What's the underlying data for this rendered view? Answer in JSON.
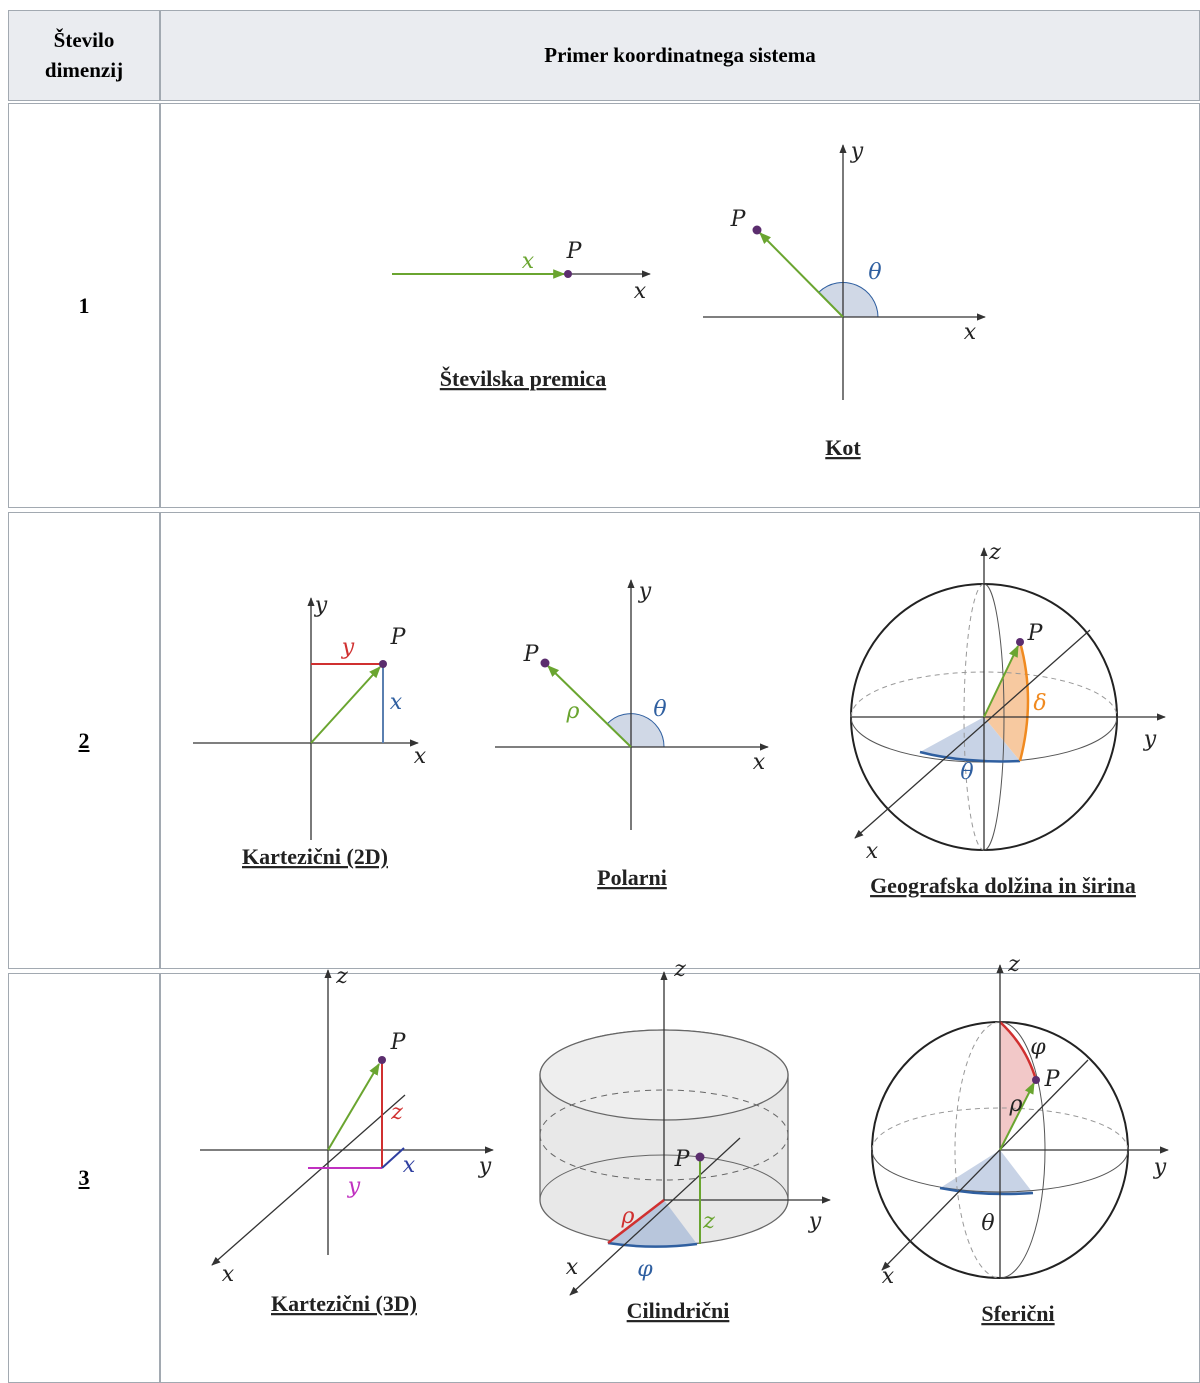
{
  "header": {
    "dimension": "Število dimenzij",
    "example": "Primer koordinatnega sistema"
  },
  "rows": [
    {
      "dimension": "1",
      "figures": [
        {
          "caption": "Številska premica",
          "labels": [
            "x",
            "P",
            "x"
          ]
        },
        {
          "caption": "Kot",
          "labels": [
            "y",
            "P",
            "θ",
            "x"
          ]
        }
      ]
    },
    {
      "dimension": "2",
      "figures": [
        {
          "caption": "Kartezični (2D)",
          "labels": [
            "y",
            "y",
            "P",
            "x",
            "x"
          ]
        },
        {
          "caption": "Polarni",
          "labels": [
            "y",
            "P",
            "ρ",
            "θ",
            "x"
          ]
        },
        {
          "caption": "Geografska dolžina in širina",
          "labels": [
            "z",
            "P",
            "δ",
            "y",
            "θ",
            "x"
          ]
        }
      ]
    },
    {
      "dimension": "3",
      "figures": [
        {
          "caption": "Kartezični (3D)",
          "labels": [
            "z",
            "P",
            "z",
            "x",
            "y",
            "y",
            "x"
          ]
        },
        {
          "caption": "Cilindrični",
          "labels": [
            "z",
            "P",
            "ρ",
            "z",
            "y",
            "φ",
            "x"
          ]
        },
        {
          "caption": "Sferični",
          "labels": [
            "z",
            "φ",
            "P",
            "ρ",
            "y",
            "θ",
            "x"
          ]
        }
      ]
    }
  ]
}
